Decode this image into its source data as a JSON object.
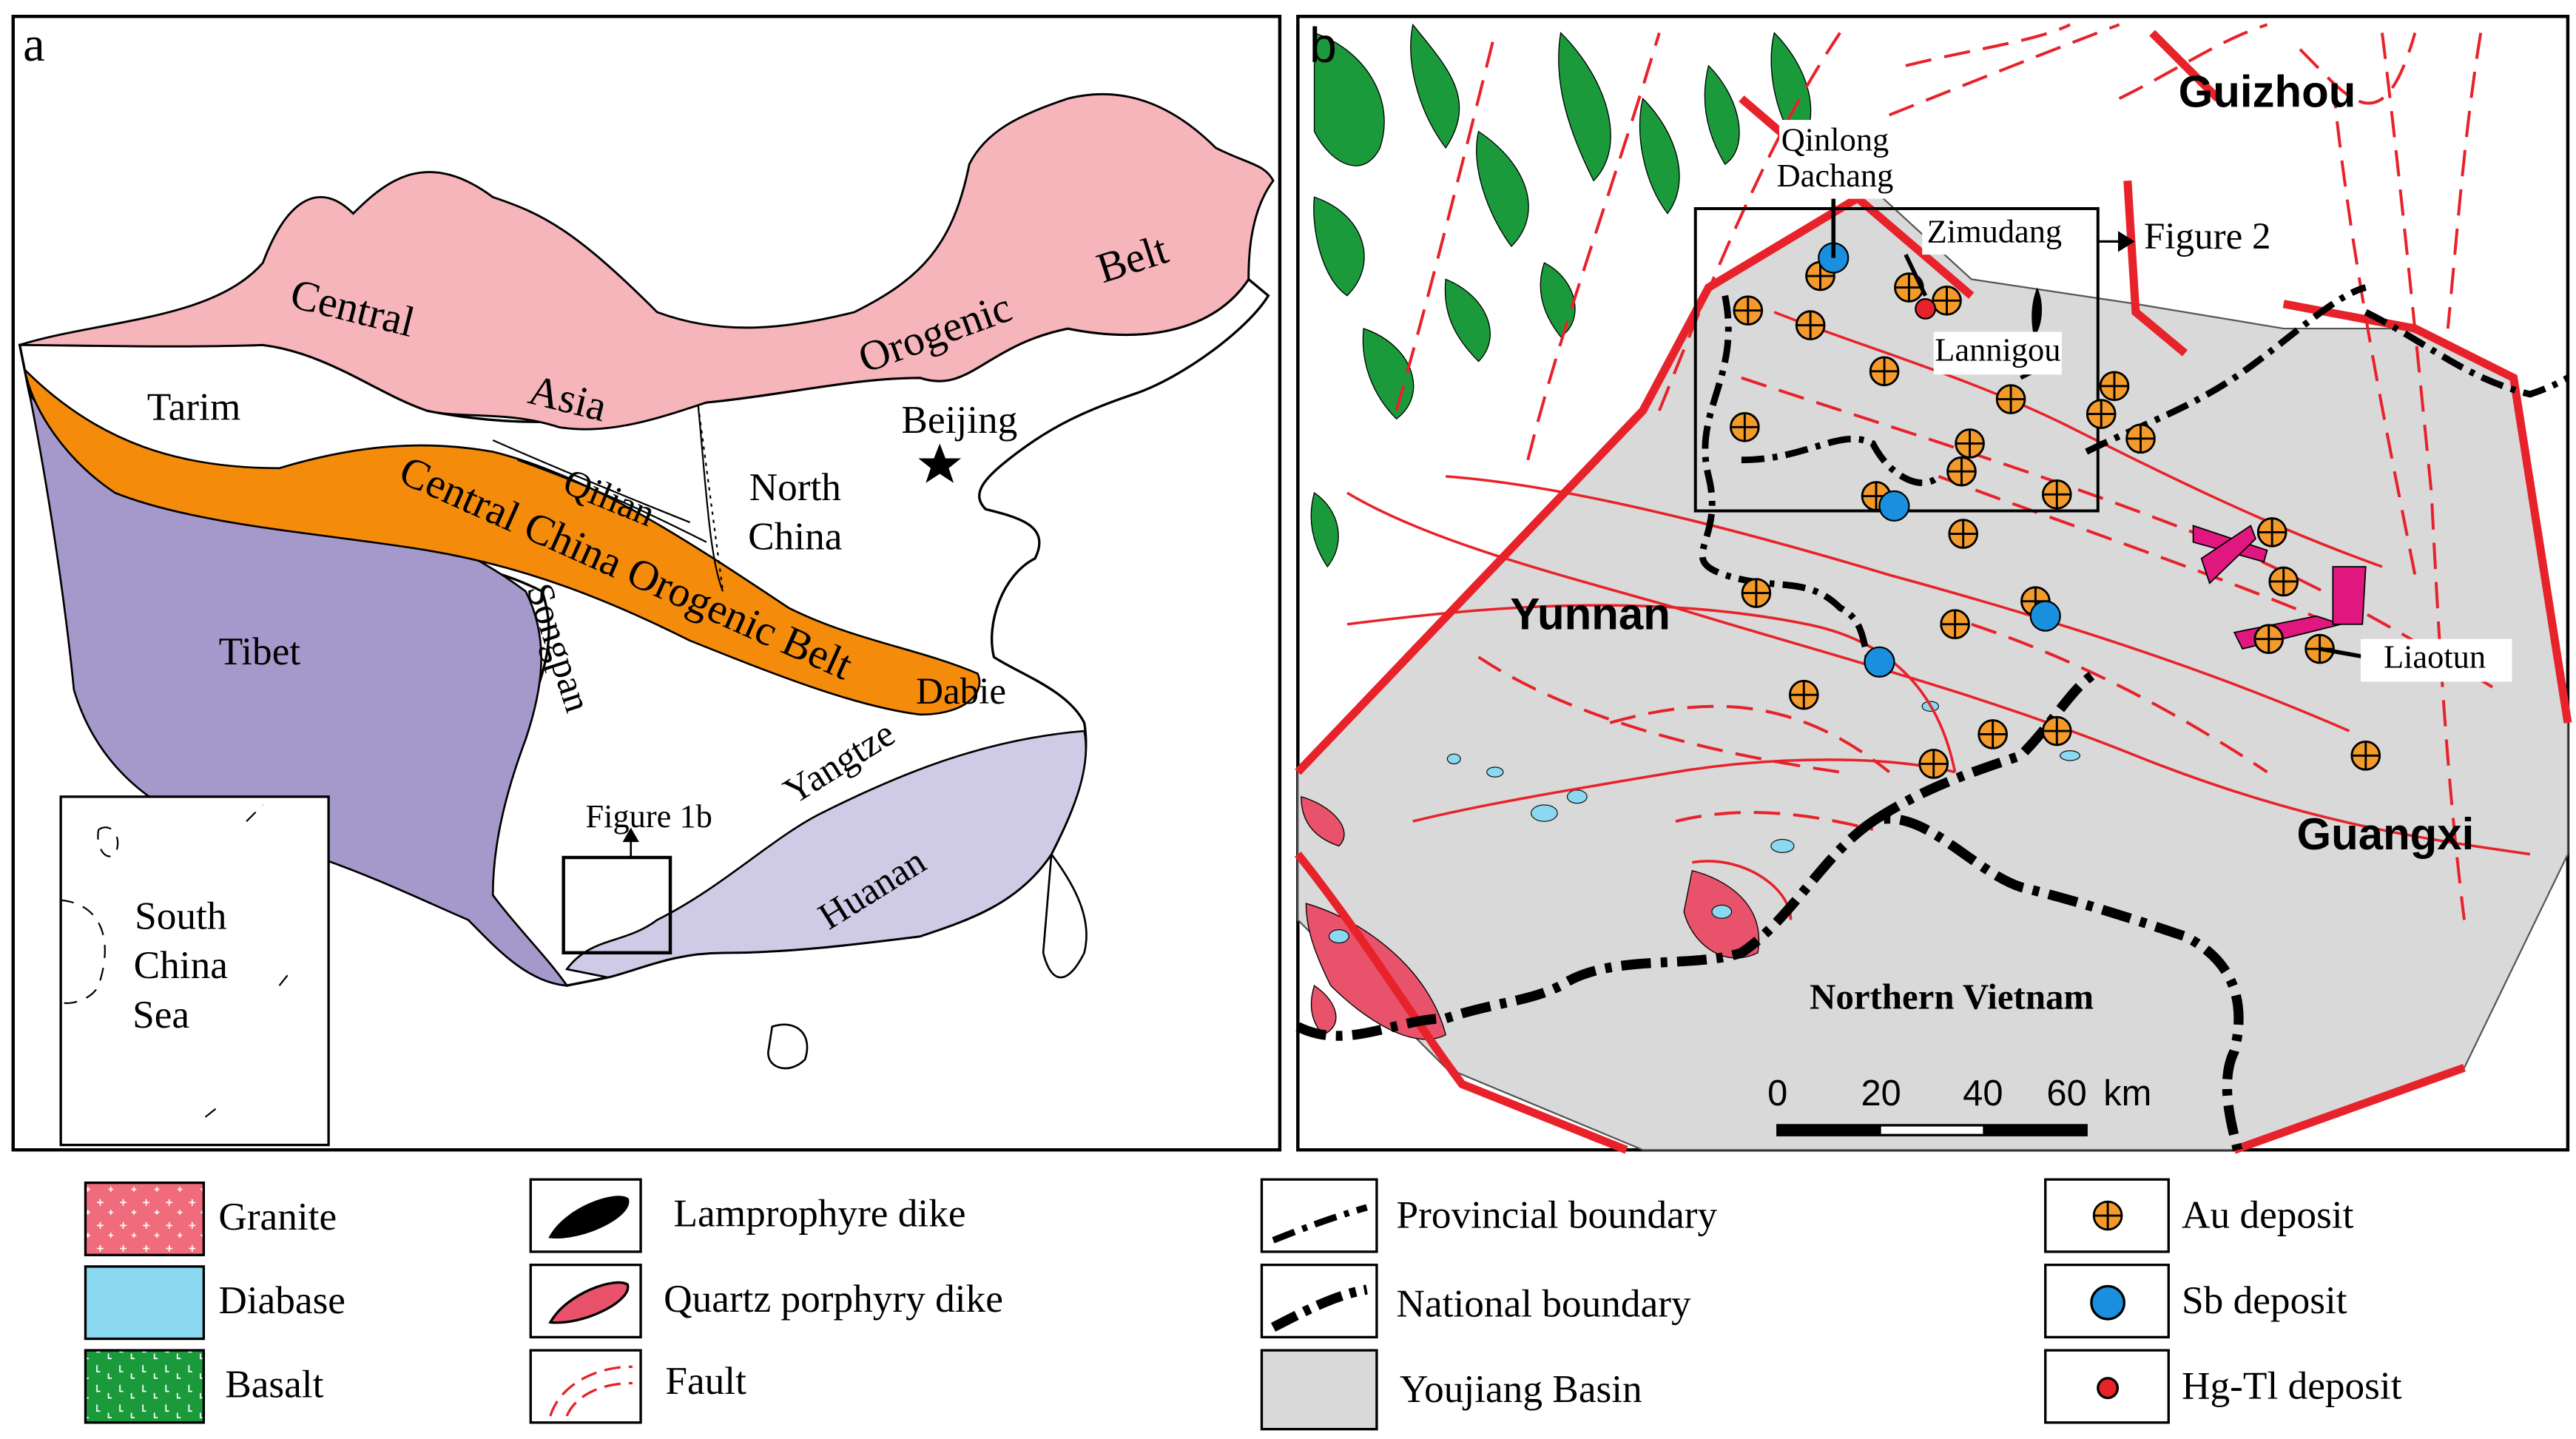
{
  "panel_a": {
    "label": "a",
    "labels": [
      "Central",
      "Asia",
      "Orogenic",
      "Belt",
      "Tarim",
      "Beijing",
      "Qilian",
      "North",
      "China",
      "Central China Orogenic Belt",
      "Tibet",
      "Songpan",
      "Dabie",
      "Yangtze",
      "Huanan",
      "Figure 1b"
    ],
    "inset": [
      "South",
      "China",
      "Sea"
    ]
  },
  "panel_b": {
    "label": "b",
    "labels": [
      "Guizhou",
      "Qinlong",
      "Dachang",
      "Zimudang",
      "Figure 2",
      "Lannigou",
      "Yunnan",
      "Liaotun",
      "Guangxi",
      "Northern Vietnam"
    ],
    "scale_bar": {
      "ticks": [
        0,
        20,
        40,
        60
      ],
      "unit": "km"
    }
  },
  "legend": [
    "Granite",
    "Diabase",
    "Basalt",
    "Lamprophyre dike",
    "Quartz porphyry dike",
    "Fault",
    "Provincial boundary",
    "National boundary",
    "Youjiang Basin",
    "Au deposit",
    "Sb deposit",
    "Hg-Tl deposit"
  ]
}
